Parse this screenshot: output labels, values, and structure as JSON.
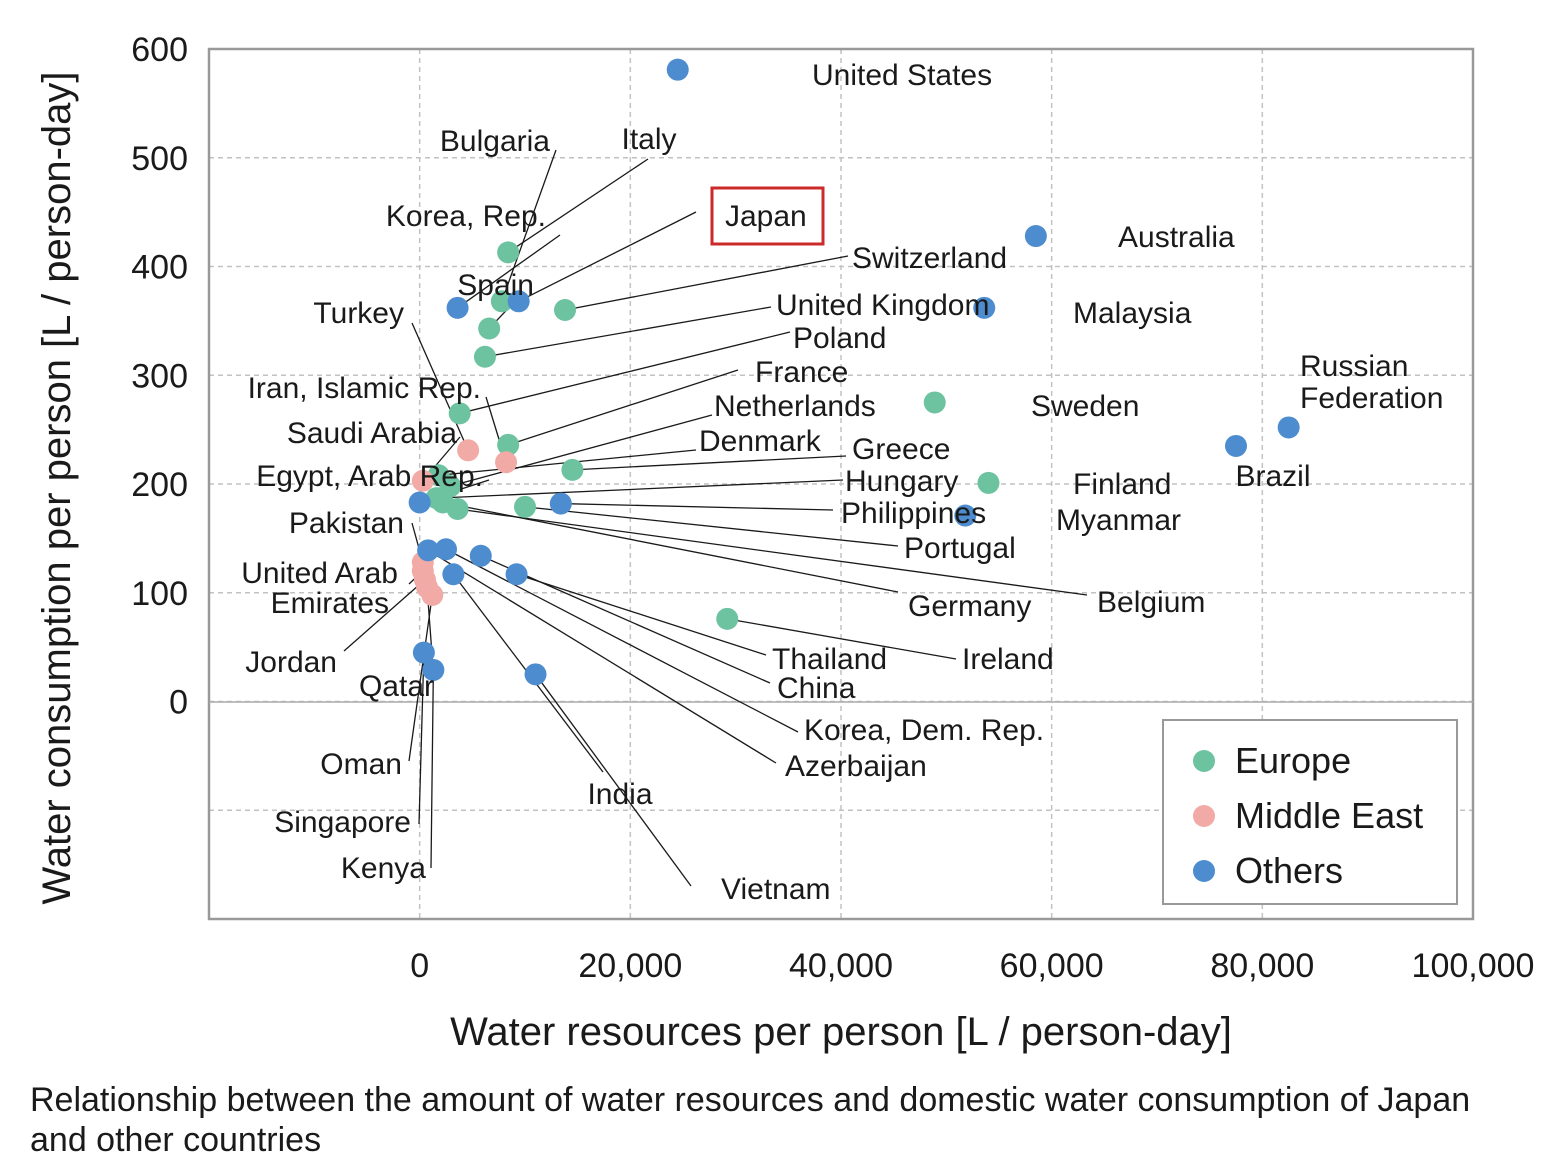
{
  "chart_data": {
    "type": "scatter",
    "title": "",
    "xlabel": "Water resources per person [L / person-day]",
    "ylabel": "Water consumption per person [L / person-day]",
    "xlim": [
      -20000,
      100000
    ],
    "ylim": [
      -200,
      600
    ],
    "x_ticks": [
      0,
      20000,
      40000,
      60000,
      80000,
      100000
    ],
    "x_tick_labels": [
      "0",
      "20,000",
      "40,000",
      "60,000",
      "80,000",
      "100,000"
    ],
    "y_ticks": [
      0,
      100,
      200,
      300,
      400,
      500,
      600
    ],
    "y_tick_labels": [
      "0",
      "100",
      "200",
      "300",
      "400",
      "500",
      "600"
    ],
    "grid": true,
    "legend_position": "bottom-right",
    "highlight": "Japan",
    "series": [
      {
        "name": "Europe",
        "color": "#6dc3a0",
        "points": [
          {
            "label": "Italy",
            "x": 8400,
            "y": 413
          },
          {
            "label": "Bulgaria",
            "x": 7800,
            "y": 368
          },
          {
            "label": "Switzerland",
            "x": 13800,
            "y": 360
          },
          {
            "label": "Spain",
            "x": 6600,
            "y": 343
          },
          {
            "label": "United Kingdom",
            "x": 6200,
            "y": 317
          },
          {
            "label": "Poland",
            "x": 3800,
            "y": 265
          },
          {
            "label": "France",
            "x": 8400,
            "y": 236
          },
          {
            "label": "Greece",
            "x": 14500,
            "y": 213
          },
          {
            "label": "Denmark",
            "x": 1800,
            "y": 208
          },
          {
            "label": "Netherlands",
            "x": 2900,
            "y": 198
          },
          {
            "label": "Hungary",
            "x": 1600,
            "y": 187
          },
          {
            "label": "Germany",
            "x": 2200,
            "y": 183
          },
          {
            "label": "Belgium",
            "x": 3600,
            "y": 177
          },
          {
            "label": "Portugal",
            "x": 10000,
            "y": 179
          },
          {
            "label": "Sweden",
            "x": 48900,
            "y": 275
          },
          {
            "label": "Finland",
            "x": 54000,
            "y": 201
          },
          {
            "label": "Ireland",
            "x": 29200,
            "y": 76
          }
        ]
      },
      {
        "name": "Middle East",
        "color": "#f2aaa6",
        "points": [
          {
            "label": "Turkey",
            "x": 4600,
            "y": 231
          },
          {
            "label": "Iran, Islamic Rep.",
            "x": 8200,
            "y": 220
          },
          {
            "label": "Saudi Arabia",
            "x": 300,
            "y": 203
          },
          {
            "label": "Pakistan",
            "x": 300,
            "y": 128
          },
          {
            "label": "United Arab Emirates",
            "x": 300,
            "y": 120
          },
          {
            "label": "Jordan",
            "x": 500,
            "y": 112
          },
          {
            "label": "Qatar",
            "x": 700,
            "y": 105
          },
          {
            "label": "Oman",
            "x": 1200,
            "y": 98
          }
        ]
      },
      {
        "name": "Others",
        "color": "#4d8dcf",
        "points": [
          {
            "label": "United States",
            "x": 24500,
            "y": 581
          },
          {
            "label": "Australia",
            "x": 58500,
            "y": 428
          },
          {
            "label": "Malaysia",
            "x": 53600,
            "y": 362
          },
          {
            "label": "Korea, Rep.",
            "x": 3600,
            "y": 362
          },
          {
            "label": "Japan",
            "x": 9400,
            "y": 368
          },
          {
            "label": "Russian Federation",
            "x": 82500,
            "y": 252
          },
          {
            "label": "Brazil",
            "x": 77500,
            "y": 235
          },
          {
            "label": "Myanmar",
            "x": 51800,
            "y": 171
          },
          {
            "label": "Philippines",
            "x": 13400,
            "y": 182
          },
          {
            "label": "Egypt, Arab Rep.",
            "x": 0,
            "y": 183
          },
          {
            "label": "India",
            "x": 3200,
            "y": 117
          },
          {
            "label": "Thailand",
            "x": 9200,
            "y": 117
          },
          {
            "label": "China",
            "x": 5800,
            "y": 134
          },
          {
            "label": "Korea, Dem. Rep.",
            "x": 2500,
            "y": 140
          },
          {
            "label": "Azerbaijan",
            "x": 800,
            "y": 139
          },
          {
            "label": "Singapore",
            "x": 400,
            "y": 45
          },
          {
            "label": "Kenya",
            "x": 1300,
            "y": 29
          },
          {
            "label": "Vietnam",
            "x": 11000,
            "y": 25
          }
        ]
      }
    ]
  },
  "caption": "Relationship between the amount of water resources and domestic water consumption of Japan and other countries"
}
